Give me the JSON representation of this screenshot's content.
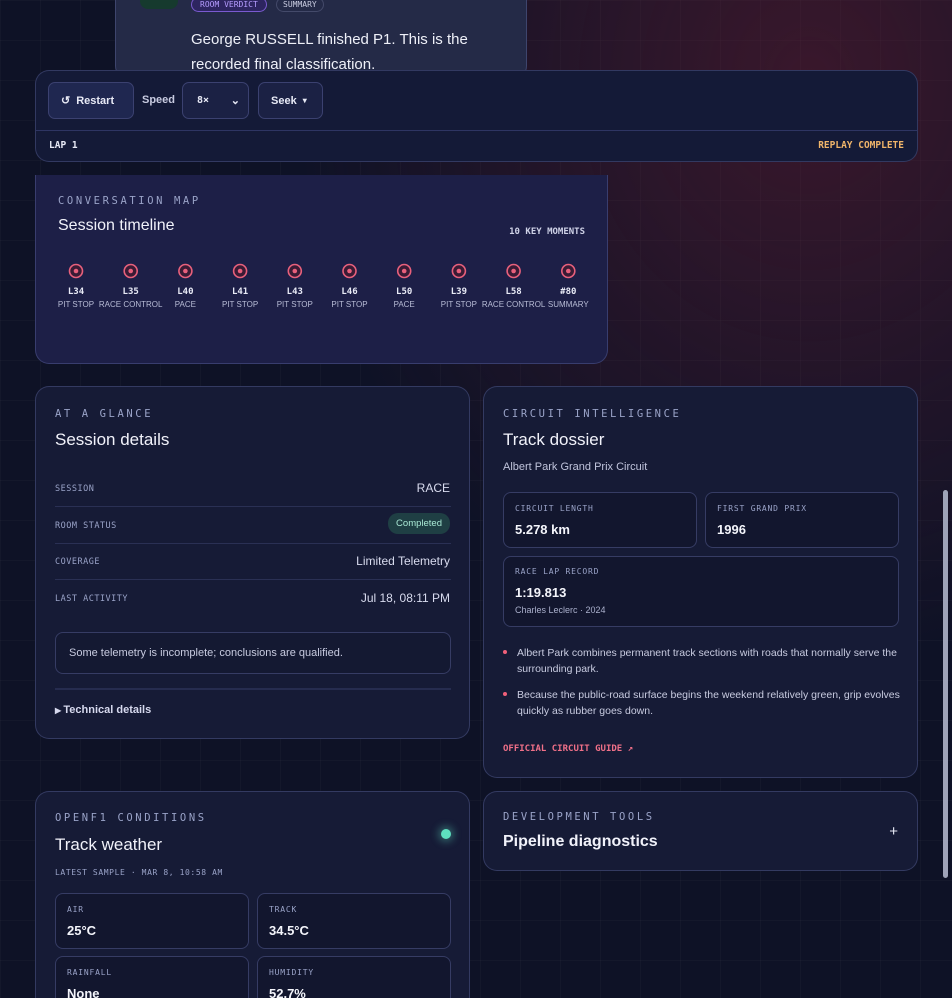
{
  "verdict": {
    "badges": [
      "ROOM VERDICT",
      "SUMMARY"
    ],
    "text": "George RUSSELL finished P1. This is the recorded final classification."
  },
  "controls": {
    "restart": "Restart",
    "speed_label": "Speed",
    "speed": "8×",
    "seek": "Seek",
    "lap": "LAP 1",
    "status": "REPLAY COMPLETE"
  },
  "timeline": {
    "eyebrow": "CONVERSATION MAP",
    "title": "Session timeline",
    "count": "10 KEY MOMENTS",
    "moments": [
      {
        "lap": "L34",
        "type": "PIT STOP"
      },
      {
        "lap": "L35",
        "type": "RACE CONTROL"
      },
      {
        "lap": "L40",
        "type": "PACE"
      },
      {
        "lap": "L41",
        "type": "PIT STOP"
      },
      {
        "lap": "L43",
        "type": "PIT STOP"
      },
      {
        "lap": "L46",
        "type": "PIT STOP"
      },
      {
        "lap": "L50",
        "type": "PACE"
      },
      {
        "lap": "L39",
        "type": "PIT STOP"
      },
      {
        "lap": "L58",
        "type": "RACE CONTROL"
      },
      {
        "lap": "#80",
        "type": "SUMMARY"
      }
    ]
  },
  "session": {
    "eyebrow": "AT A GLANCE",
    "title": "Session details",
    "rows": [
      [
        "SESSION",
        "RACE"
      ],
      [
        "ROOM STATUS",
        "Completed"
      ],
      [
        "COVERAGE",
        "Limited Telemetry"
      ],
      [
        "LAST ACTIVITY",
        "Jul 18, 08:11 PM"
      ]
    ],
    "note": "Some telemetry is incomplete; conclusions are qualified.",
    "details": "Technical details"
  },
  "track": {
    "eyebrow": "CIRCUIT INTELLIGENCE",
    "title": "Track dossier",
    "circuit": "Albert Park Grand Prix Circuit",
    "stats": [
      [
        "CIRCUIT LENGTH",
        "5.278 km"
      ],
      [
        "FIRST GRAND PRIX",
        "1996"
      ]
    ],
    "record": {
      "label": "RACE LAP RECORD",
      "time": "1:19.813",
      "holder": "Charles Leclerc · 2024"
    },
    "facts": [
      "Albert Park combines permanent track sections with roads that normally serve the surrounding park.",
      "Because the public-road surface begins the weekend relatively green, grip evolves quickly as rubber goes down."
    ],
    "link": "OFFICIAL CIRCUIT GUIDE"
  },
  "weather": {
    "eyebrow": "OPENF1 CONDITIONS",
    "title": "Track weather",
    "sample": "LATEST SAMPLE · MAR 8, 10:58 AM",
    "stats": [
      [
        "AIR",
        "25°C"
      ],
      [
        "TRACK",
        "34.5°C"
      ],
      [
        "RAINFALL",
        "None"
      ],
      [
        "HUMIDITY",
        "52.7%"
      ]
    ]
  },
  "tools": {
    "eyebrow": "DEVELOPMENT TOOLS",
    "title": "Pipeline diagnostics"
  }
}
